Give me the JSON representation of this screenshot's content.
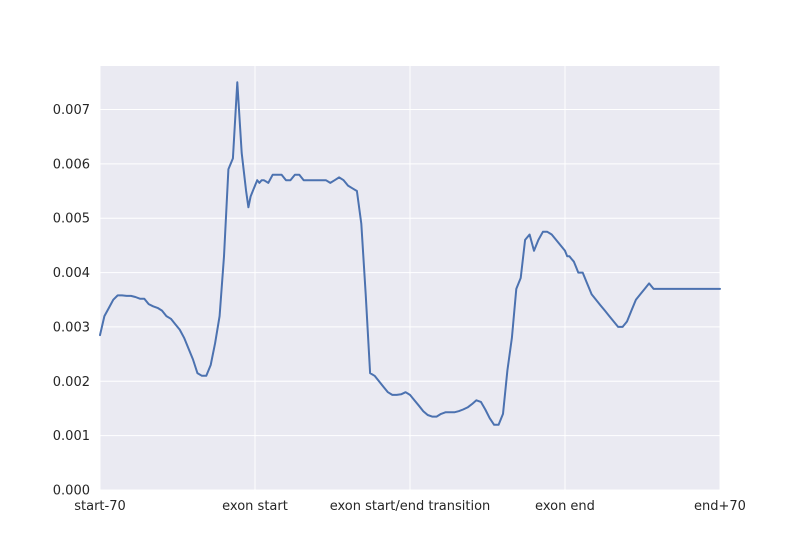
{
  "chart_data": {
    "type": "line",
    "title": "",
    "xlabel": "",
    "ylabel": "",
    "xlim": [
      0,
      280
    ],
    "ylim": [
      0,
      0.0078
    ],
    "grid": true,
    "x_ticks": [
      {
        "pos": 0,
        "label": "start-70"
      },
      {
        "pos": 70,
        "label": "exon start"
      },
      {
        "pos": 140,
        "label": "exon start/end transition"
      },
      {
        "pos": 210,
        "label": "exon end"
      },
      {
        "pos": 280,
        "label": "end+70"
      }
    ],
    "y_ticks": [
      {
        "value": 0.0,
        "label": "0.000"
      },
      {
        "value": 0.001,
        "label": "0.001"
      },
      {
        "value": 0.002,
        "label": "0.002"
      },
      {
        "value": 0.003,
        "label": "0.003"
      },
      {
        "value": 0.004,
        "label": "0.004"
      },
      {
        "value": 0.005,
        "label": "0.005"
      },
      {
        "value": 0.006,
        "label": "0.006"
      },
      {
        "value": 0.007,
        "label": "0.007"
      }
    ],
    "colors": {
      "background": "#eaeaf2",
      "grid": "#ffffff",
      "line": "#4c72b0"
    },
    "series": [
      {
        "x": [
          0,
          2,
          4,
          6,
          8,
          10,
          12,
          14,
          16,
          18,
          20,
          22,
          24,
          26,
          28,
          30,
          32,
          34,
          36,
          38,
          40,
          42,
          44,
          46,
          48,
          50,
          52,
          54,
          56,
          58,
          60,
          62,
          64,
          66,
          67,
          68,
          69,
          70,
          71,
          72,
          73,
          74,
          76,
          78,
          80,
          82,
          84,
          86,
          88,
          90,
          92,
          94,
          96,
          98,
          100,
          102,
          104,
          106,
          108,
          110,
          112,
          114,
          116,
          118,
          120,
          122,
          124,
          126,
          128,
          130,
          132,
          134,
          136,
          138,
          140,
          142,
          144,
          146,
          148,
          150,
          152,
          154,
          156,
          158,
          160,
          162,
          164,
          166,
          168,
          170,
          172,
          174,
          176,
          178,
          180,
          182,
          184,
          186,
          188,
          190,
          192,
          194,
          196,
          198,
          200,
          202,
          204,
          206,
          208,
          210,
          211,
          212,
          213,
          214,
          215,
          216,
          217,
          218,
          219,
          220,
          221,
          222,
          224,
          226,
          228,
          230,
          232,
          234,
          236,
          238,
          240,
          242,
          244,
          246,
          248,
          250,
          252,
          254,
          256,
          258,
          260,
          262,
          264,
          266,
          268,
          270,
          272,
          274,
          276,
          278,
          280
        ],
        "y": [
          0.00285,
          0.0032,
          0.00335,
          0.0035,
          0.00358,
          0.00358,
          0.00357,
          0.00357,
          0.00355,
          0.00352,
          0.00352,
          0.00342,
          0.00338,
          0.00335,
          0.0033,
          0.0032,
          0.00315,
          0.00305,
          0.00295,
          0.0028,
          0.0026,
          0.0024,
          0.00215,
          0.0021,
          0.0021,
          0.0023,
          0.0027,
          0.0032,
          0.0043,
          0.0059,
          0.0061,
          0.0075,
          0.0062,
          0.0055,
          0.0052,
          0.0054,
          0.0055,
          0.0056,
          0.0057,
          0.00565,
          0.0057,
          0.0057,
          0.00565,
          0.0058,
          0.0058,
          0.0058,
          0.0057,
          0.0057,
          0.0058,
          0.0058,
          0.0057,
          0.0057,
          0.0057,
          0.0057,
          0.0057,
          0.0057,
          0.00565,
          0.0057,
          0.00575,
          0.0057,
          0.0056,
          0.00555,
          0.0055,
          0.0049,
          0.0036,
          0.00215,
          0.0021,
          0.002,
          0.0019,
          0.0018,
          0.00175,
          0.00175,
          0.00176,
          0.0018,
          0.00175,
          0.00165,
          0.00155,
          0.00145,
          0.00138,
          0.00135,
          0.00135,
          0.0014,
          0.00143,
          0.00143,
          0.00143,
          0.00145,
          0.00148,
          0.00152,
          0.00158,
          0.00165,
          0.00162,
          0.00148,
          0.00132,
          0.0012,
          0.0012,
          0.0014,
          0.0022,
          0.0028,
          0.0037,
          0.0039,
          0.0046,
          0.0047,
          0.0044,
          0.0046,
          0.00475,
          0.00475,
          0.0047,
          0.0046,
          0.0045,
          0.0044,
          0.0043,
          0.0043,
          0.00425,
          0.0042,
          0.0041,
          0.004,
          0.004,
          0.004,
          0.0039,
          0.0038,
          0.0037,
          0.0036,
          0.0035,
          0.0034,
          0.0033,
          0.0032,
          0.0031,
          0.003,
          0.003,
          0.0031,
          0.0033,
          0.0035,
          0.0036,
          0.0037,
          0.0038,
          0.0037,
          0.0037,
          0.0037,
          0.0037,
          0.0037,
          0.0037,
          0.0037,
          0.0037,
          0.0037,
          0.0037,
          0.0037,
          0.0037,
          0.0037,
          0.0037,
          0.0037,
          0.0037
        ]
      }
    ]
  }
}
